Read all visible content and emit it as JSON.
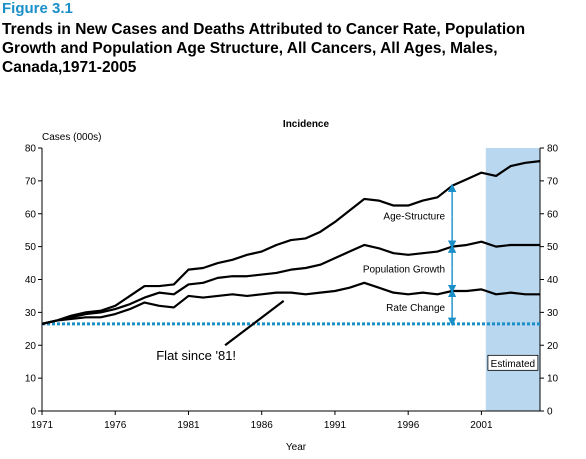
{
  "figure": {
    "number": "Figure 3.1",
    "title": "Trends in New Cases and Deaths Attributed to Cancer Rate, Population Growth and Population Age Structure, All Cancers, All Ages, Males, Canada,1971-2005"
  },
  "chart_data": {
    "type": "line",
    "title": "Incidence",
    "ylabel": "Cases (000s)",
    "xlabel": "Year",
    "xlim": [
      1971,
      2005
    ],
    "ylim": [
      0,
      80
    ],
    "x_ticks": [
      "1971",
      "1976",
      "1981",
      "1986",
      "1991",
      "1996",
      "2001"
    ],
    "y_ticks": [
      "0",
      "10",
      "20",
      "30",
      "40",
      "50",
      "60",
      "70",
      "80"
    ],
    "x": [
      1971,
      1972,
      1973,
      1974,
      1975,
      1976,
      1977,
      1978,
      1979,
      1980,
      1981,
      1982,
      1983,
      1984,
      1985,
      1986,
      1987,
      1988,
      1989,
      1990,
      1991,
      1992,
      1993,
      1994,
      1995,
      1996,
      1997,
      1998,
      1999,
      2000,
      2001,
      2002,
      2003,
      2004,
      2005
    ],
    "series": [
      {
        "values": [
          26.5,
          27.5,
          29,
          30,
          30.5,
          32,
          35,
          38,
          38,
          38.5,
          43,
          43.5,
          45,
          46,
          47.5,
          48.5,
          50.5,
          52,
          52.5,
          54.5,
          57.5,
          61,
          64.5,
          64,
          62.5,
          62.5,
          64,
          65,
          68.5,
          70.5,
          72.5,
          71.5,
          74.5,
          75.5,
          76
        ]
      },
      {
        "values": [
          26.5,
          27.5,
          28.5,
          29.5,
          30,
          31,
          32.5,
          34.5,
          36,
          35.5,
          38.5,
          39,
          40.5,
          41,
          41,
          41.5,
          42,
          43,
          43.5,
          44.5,
          46.5,
          48.5,
          50.5,
          49.5,
          48,
          47.5,
          48,
          48.5,
          50,
          50.5,
          51.5,
          50,
          50.5,
          50.5,
          50.5
        ]
      },
      {
        "values": [
          26.5,
          27.5,
          28,
          28.5,
          28.5,
          29.5,
          31,
          33,
          32,
          31.5,
          35,
          34.5,
          35,
          35.5,
          35,
          35.5,
          36,
          36,
          35.5,
          36,
          36.5,
          37.5,
          39,
          37.5,
          36,
          35.5,
          36,
          35.5,
          36.5,
          36.5,
          37,
          35.5,
          36,
          35.5,
          35.5
        ]
      }
    ],
    "baseline_value": 26.5,
    "estimated_region": {
      "start": 2001.3,
      "end": 2005,
      "label": "Estimated",
      "color": "#b9d7ef"
    },
    "baseline_color": "#1a8fc8",
    "arrow_color": "#1a8fc8",
    "component_labels": [
      {
        "text": "Age-Structure",
        "x": 1999,
        "from": 50,
        "to": 68.5
      },
      {
        "text": "Population Growth",
        "x": 1999,
        "from": 36.5,
        "to": 50
      },
      {
        "text": "Rate Change",
        "x": 1999,
        "from": 26.5,
        "to": 36.5
      }
    ],
    "annotation": {
      "text": "Flat since '81!",
      "from": [
        1983.5,
        20
      ],
      "to": [
        1987.5,
        33.5
      ]
    }
  }
}
